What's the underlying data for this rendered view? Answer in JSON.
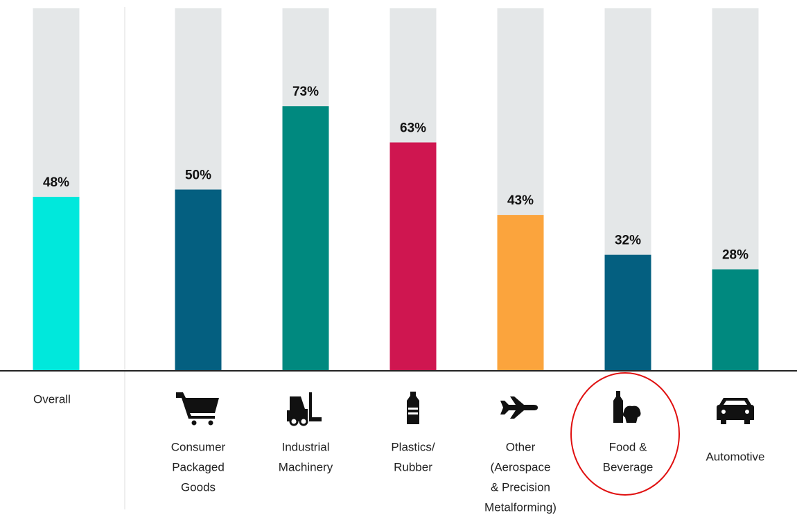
{
  "chart_data": {
    "type": "bar",
    "categories": [
      [
        "Overall"
      ],
      [
        "Consumer",
        "Packaged",
        "Goods"
      ],
      [
        "Industrial",
        "Machinery"
      ],
      [
        "Plastics/",
        "Rubber"
      ],
      [
        "Other",
        "(Aerospace",
        "& Precision",
        "Metalforming)"
      ],
      [
        "Food &",
        "Beverage"
      ],
      [
        "Automotive"
      ]
    ],
    "values": [
      48,
      50,
      73,
      63,
      43,
      32,
      28
    ],
    "value_labels": [
      "48%",
      "50%",
      "73%",
      "63%",
      "43%",
      "32%",
      "28%"
    ],
    "colors": [
      "#00e8dc",
      "#045f80",
      "#00897f",
      "#cf1650",
      "#fba43d",
      "#045f80",
      "#00897f"
    ],
    "track_color": "#e4e7e8",
    "ylim": [
      0,
      100
    ]
  }
}
